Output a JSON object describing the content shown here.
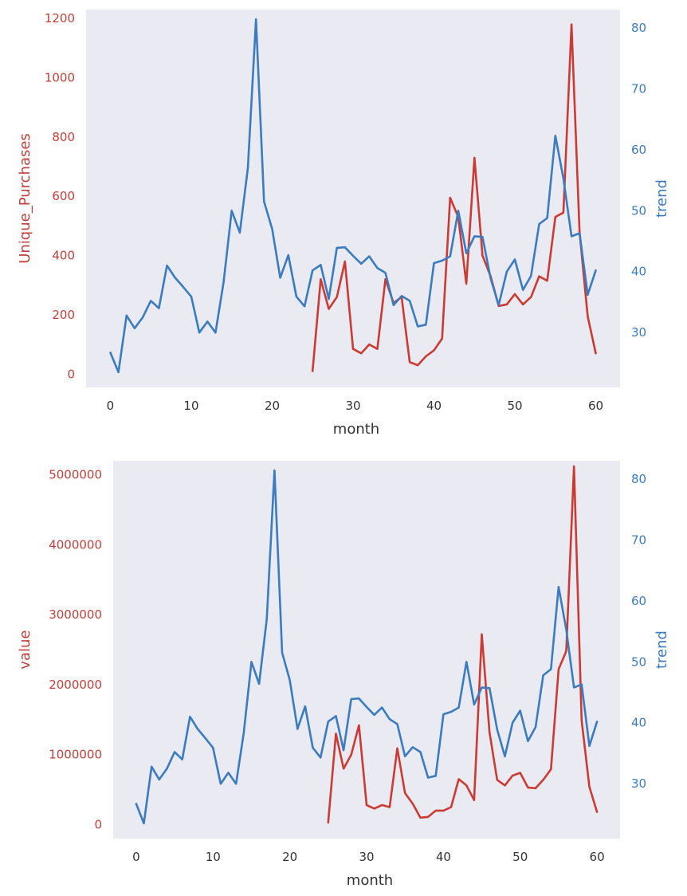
{
  "colors": {
    "left_series": "#cc3b33",
    "right_series": "#3b7bbf",
    "plot_background": "#eaeaf2"
  },
  "chart_data": [
    {
      "type": "line",
      "xlabel": "month",
      "ylabel_left": "Unique_Purchases",
      "ylabel_right": "trend",
      "xlim": [
        -3,
        63
      ],
      "ylim_left": [
        -45,
        1230
      ],
      "ylim_right": [
        21,
        83
      ],
      "xticks": [
        0,
        10,
        20,
        30,
        40,
        50,
        60
      ],
      "yticks_left": [
        0,
        200,
        400,
        600,
        800,
        1000,
        1200
      ],
      "yticks_right": [
        30,
        40,
        50,
        60,
        70,
        80
      ],
      "grid": false,
      "series": [
        {
          "axis": "left",
          "color": "#cc3b33",
          "x": [
            25,
            26,
            27,
            28,
            29,
            30,
            31,
            32,
            33,
            34,
            35,
            36,
            37,
            38,
            39,
            40,
            41,
            42,
            43,
            44,
            45,
            46,
            47,
            48,
            49,
            50,
            51,
            52,
            53,
            54,
            55,
            56,
            57,
            58,
            59,
            60
          ],
          "y": [
            10,
            320,
            220,
            260,
            380,
            85,
            70,
            100,
            85,
            320,
            240,
            260,
            40,
            30,
            60,
            80,
            120,
            595,
            530,
            305,
            730,
            400,
            330,
            230,
            235,
            270,
            235,
            260,
            330,
            315,
            530,
            545,
            1180,
            480,
            195,
            70
          ]
        },
        {
          "axis": "right",
          "color": "#3b7bbf",
          "x": [
            0,
            1,
            2,
            3,
            4,
            5,
            6,
            7,
            8,
            9,
            10,
            11,
            12,
            13,
            14,
            15,
            16,
            17,
            18,
            19,
            20,
            21,
            22,
            23,
            24,
            25,
            26,
            27,
            28,
            29,
            30,
            31,
            32,
            33,
            34,
            35,
            36,
            37,
            38,
            39,
            40,
            41,
            42,
            43,
            44,
            45,
            46,
            47,
            48,
            49,
            50,
            51,
            52,
            53,
            54,
            55,
            56,
            57,
            58,
            59,
            60
          ],
          "y": [
            26.7,
            23.5,
            32.8,
            30.7,
            32.5,
            35.2,
            34,
            41,
            39,
            37.5,
            35.9,
            30,
            31.8,
            30,
            38.3,
            50,
            46.4,
            57,
            81.4,
            51.5,
            47,
            39,
            42.7,
            35.9,
            34.3,
            40.2,
            41.1,
            35.5,
            43.9,
            44,
            42.6,
            41.3,
            42.5,
            40.6,
            39.8,
            34.5,
            36,
            35.2,
            31,
            31.3,
            41.4,
            41.8,
            42.5,
            50,
            43,
            45.8,
            45.7,
            38.9,
            34.5,
            40,
            42,
            37,
            39.3,
            47.8,
            48.8,
            62.3,
            55.3,
            45.8,
            46.3,
            36.2,
            40.2
          ]
        }
      ]
    },
    {
      "type": "line",
      "xlabel": "month",
      "ylabel_left": "value",
      "ylabel_right": "trend",
      "xlim": [
        -3,
        63
      ],
      "ylim_left": [
        -200000,
        5200000
      ],
      "ylim_right": [
        21,
        83
      ],
      "xticks": [
        0,
        10,
        20,
        30,
        40,
        50,
        60
      ],
      "yticks_left": [
        0,
        1000000,
        2000000,
        3000000,
        4000000,
        5000000
      ],
      "yticks_right": [
        30,
        40,
        50,
        60,
        70,
        80
      ],
      "grid": false,
      "series": [
        {
          "axis": "left",
          "color": "#cc3b33",
          "x": [
            25,
            26,
            27,
            28,
            29,
            30,
            31,
            32,
            33,
            34,
            35,
            36,
            37,
            38,
            39,
            40,
            41,
            42,
            43,
            44,
            45,
            46,
            47,
            48,
            49,
            50,
            51,
            52,
            53,
            54,
            55,
            56,
            57,
            58,
            59,
            60
          ],
          "y": [
            30000,
            1300000,
            800000,
            1000000,
            1420000,
            280000,
            230000,
            280000,
            250000,
            1090000,
            450000,
            300000,
            100000,
            110000,
            200000,
            200000,
            250000,
            650000,
            560000,
            350000,
            2720000,
            1320000,
            640000,
            560000,
            700000,
            740000,
            530000,
            520000,
            640000,
            790000,
            2220000,
            2480000,
            5120000,
            1490000,
            540000,
            180000
          ]
        },
        {
          "axis": "right",
          "color": "#3b7bbf",
          "x": [
            0,
            1,
            2,
            3,
            4,
            5,
            6,
            7,
            8,
            9,
            10,
            11,
            12,
            13,
            14,
            15,
            16,
            17,
            18,
            19,
            20,
            21,
            22,
            23,
            24,
            25,
            26,
            27,
            28,
            29,
            30,
            31,
            32,
            33,
            34,
            35,
            36,
            37,
            38,
            39,
            40,
            41,
            42,
            43,
            44,
            45,
            46,
            47,
            48,
            49,
            50,
            51,
            52,
            53,
            54,
            55,
            56,
            57,
            58,
            59,
            60
          ],
          "y": [
            26.7,
            23.5,
            32.8,
            30.7,
            32.5,
            35.2,
            34,
            41,
            39,
            37.5,
            35.9,
            30,
            31.8,
            30,
            38.3,
            50,
            46.4,
            57,
            81.4,
            51.5,
            47,
            39,
            42.7,
            35.9,
            34.3,
            40.2,
            41.1,
            35.5,
            43.9,
            44,
            42.6,
            41.3,
            42.5,
            40.6,
            39.8,
            34.5,
            36,
            35.2,
            31,
            31.3,
            41.4,
            41.8,
            42.5,
            50,
            43,
            45.8,
            45.7,
            38.9,
            34.5,
            40,
            42,
            37,
            39.3,
            47.8,
            48.8,
            62.3,
            55.3,
            45.8,
            46.3,
            36.2,
            40.2
          ]
        }
      ]
    }
  ]
}
